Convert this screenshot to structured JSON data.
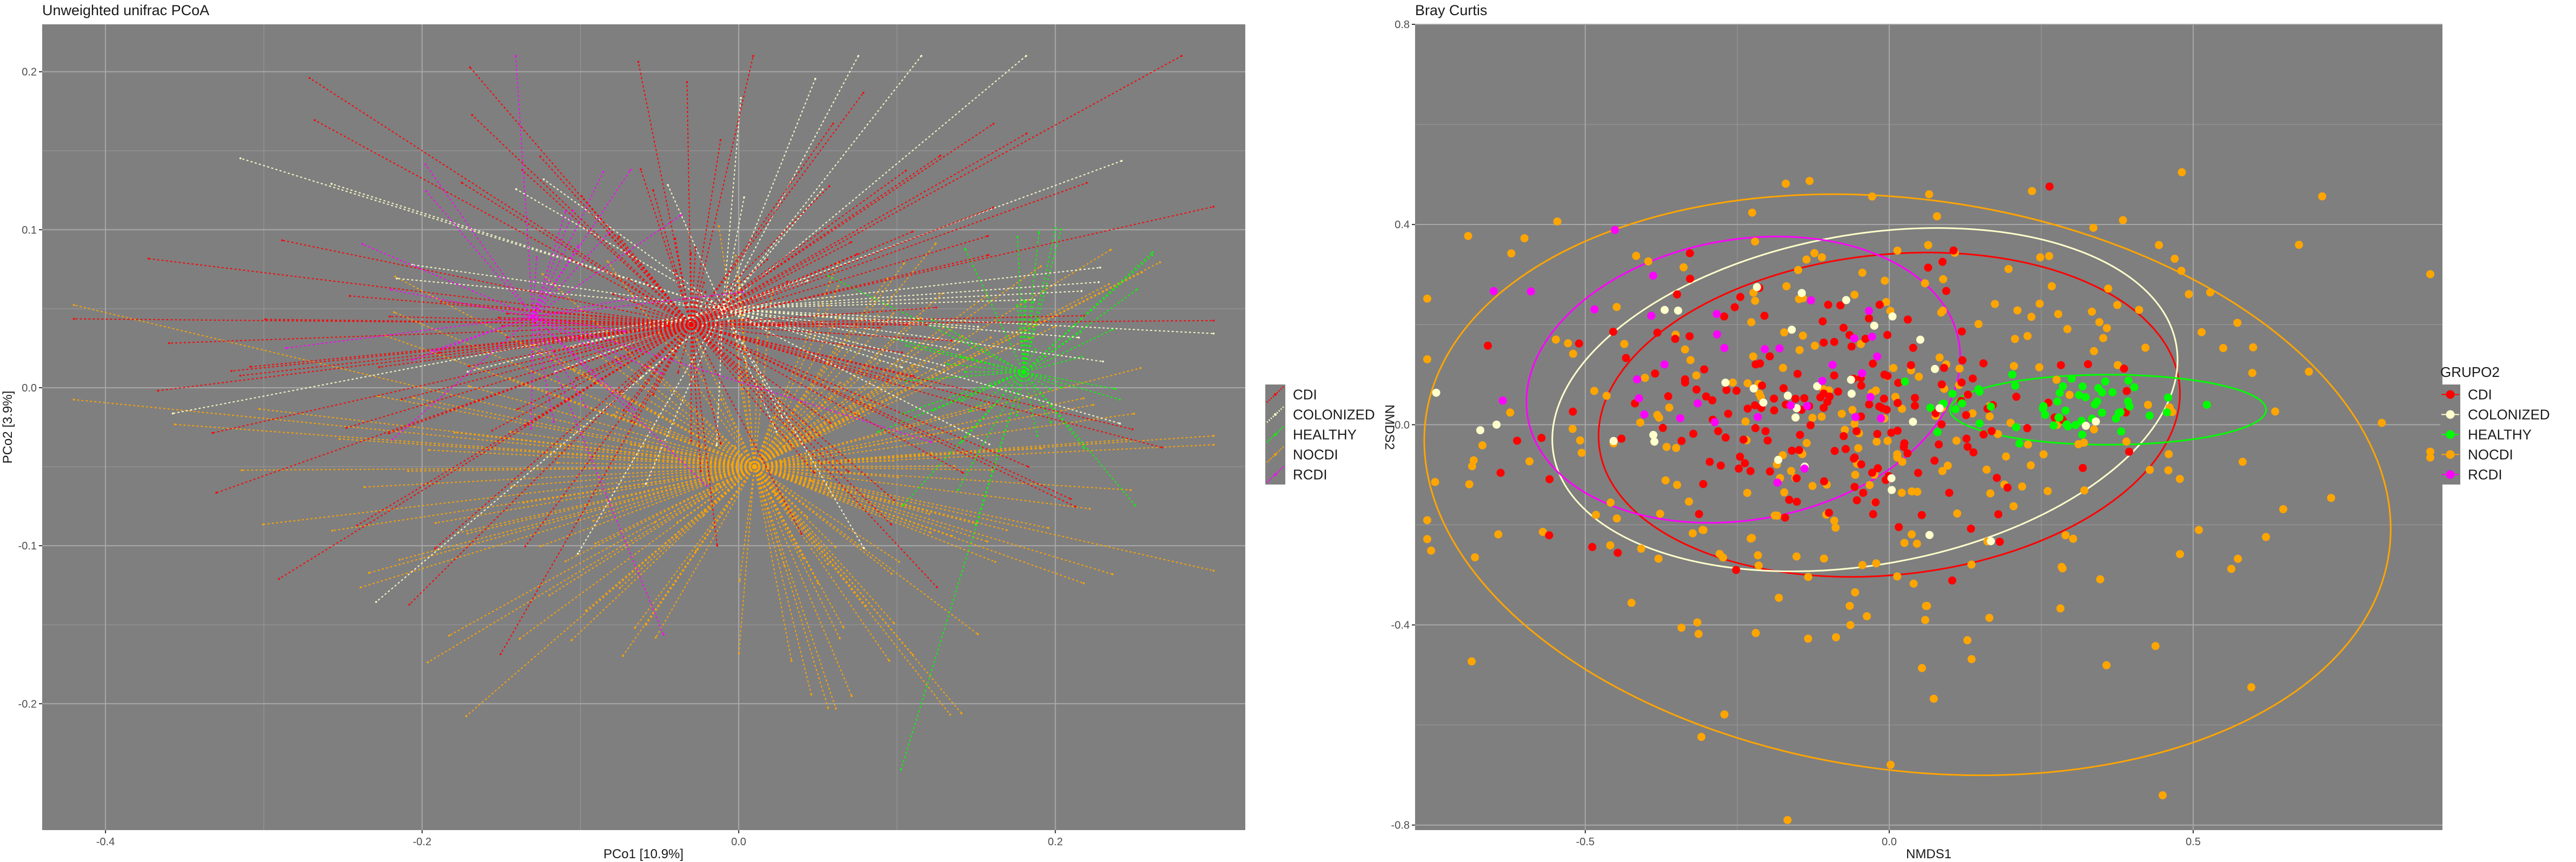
{
  "chart_data": [
    {
      "type": "scatter",
      "subtype": "pcoa-spider",
      "title": "Unweighted unifrac PCoA",
      "xlabel": "PCo1 [10.9%]",
      "ylabel": "PCo2 [3.9%]",
      "xlim": [
        -0.44,
        0.32
      ],
      "ylim": [
        -0.28,
        0.23
      ],
      "x_ticks": [
        -0.4,
        -0.2,
        0.0,
        0.2
      ],
      "x_tick_labels": [
        "-0.4",
        "-0.2",
        "0.0",
        "0.2"
      ],
      "y_ticks": [
        -0.2,
        -0.1,
        0.0,
        0.1,
        0.2
      ],
      "y_tick_labels": [
        "-0.2",
        "-0.1",
        "0.0",
        "0.1",
        "0.2"
      ],
      "grid": true,
      "legend_title": "",
      "legend": [
        "CDI",
        "COLONIZED",
        "HEALTHY",
        "NOCDI",
        "RCDI"
      ],
      "legend_placement": "right",
      "series": [
        {
          "name": "CDI",
          "color": "#ff0000",
          "centroid": [
            -0.03,
            0.04
          ],
          "n": 120,
          "spread": [
            0.16,
            0.09
          ]
        },
        {
          "name": "COLONIZED",
          "color": "#ffffcc",
          "centroid": [
            -0.01,
            0.05
          ],
          "n": 45,
          "spread": [
            0.14,
            0.08
          ]
        },
        {
          "name": "HEALTHY",
          "color": "#00ff00",
          "centroid": [
            0.18,
            0.01
          ],
          "n": 45,
          "spread": [
            0.05,
            0.06
          ]
        },
        {
          "name": "NOCDI",
          "color": "#ffa500",
          "centroid": [
            0.01,
            -0.05
          ],
          "n": 170,
          "spread": [
            0.17,
            0.09
          ]
        },
        {
          "name": "RCDI",
          "color": "#ff00ff",
          "centroid": [
            -0.13,
            0.045
          ],
          "n": 30,
          "spread": [
            0.09,
            0.07
          ]
        }
      ]
    },
    {
      "type": "scatter",
      "subtype": "nmds-ellipses",
      "title": "Bray Curtis",
      "xlabel": "NMDS1",
      "ylabel": "NMDS2",
      "xlim": [
        -0.78,
        0.91
      ],
      "ylim": [
        -0.81,
        0.8
      ],
      "x_ticks": [
        -0.5,
        0.0,
        0.5
      ],
      "x_tick_labels": [
        "-0.5",
        "0.0",
        "0.5"
      ],
      "y_ticks": [
        -0.8,
        -0.4,
        0.0,
        0.4,
        0.8
      ],
      "y_tick_labels": [
        "-0.8",
        "-0.4",
        "0.0",
        "0.4",
        "0.8"
      ],
      "grid": true,
      "legend_title": "GRUPO2",
      "legend": [
        "CDI",
        "COLONIZED",
        "HEALTHY",
        "NOCDI",
        "RCDI"
      ],
      "legend_placement": "right",
      "series": [
        {
          "name": "CDI",
          "color": "#ff0000",
          "center": [
            -0.1,
            0.03
          ],
          "n": 190,
          "spread": [
            0.22,
            0.13
          ],
          "ellipse": {
            "cx": 0.0,
            "cy": 0.02,
            "rx": 0.48,
            "ry": 0.32,
            "angle": -6
          }
        },
        {
          "name": "COLONIZED",
          "color": "#ffffcc",
          "center": [
            -0.12,
            0.03
          ],
          "n": 35,
          "spread": [
            0.2,
            0.14
          ],
          "ellipse": {
            "cx": -0.04,
            "cy": 0.05,
            "rx": 0.52,
            "ry": 0.33,
            "angle": -10
          }
        },
        {
          "name": "HEALTHY",
          "color": "#00ff00",
          "center": [
            0.3,
            0.04
          ],
          "n": 55,
          "spread": [
            0.12,
            0.035
          ],
          "ellipse": {
            "cx": 0.36,
            "cy": 0.03,
            "rx": 0.26,
            "ry": 0.07,
            "angle": 0
          }
        },
        {
          "name": "NOCDI",
          "color": "#ffa500",
          "center": [
            0.0,
            -0.02
          ],
          "n": 300,
          "spread": [
            0.33,
            0.24
          ],
          "ellipse": {
            "cx": 0.03,
            "cy": -0.12,
            "rx": 0.8,
            "ry": 0.57,
            "angle": 8
          }
        },
        {
          "name": "RCDI",
          "color": "#ff00ff",
          "center": [
            -0.25,
            0.12
          ],
          "n": 35,
          "spread": [
            0.17,
            0.13
          ],
          "ellipse": {
            "cx": -0.24,
            "cy": 0.09,
            "rx": 0.36,
            "ry": 0.28,
            "angle": -10
          }
        }
      ]
    }
  ]
}
